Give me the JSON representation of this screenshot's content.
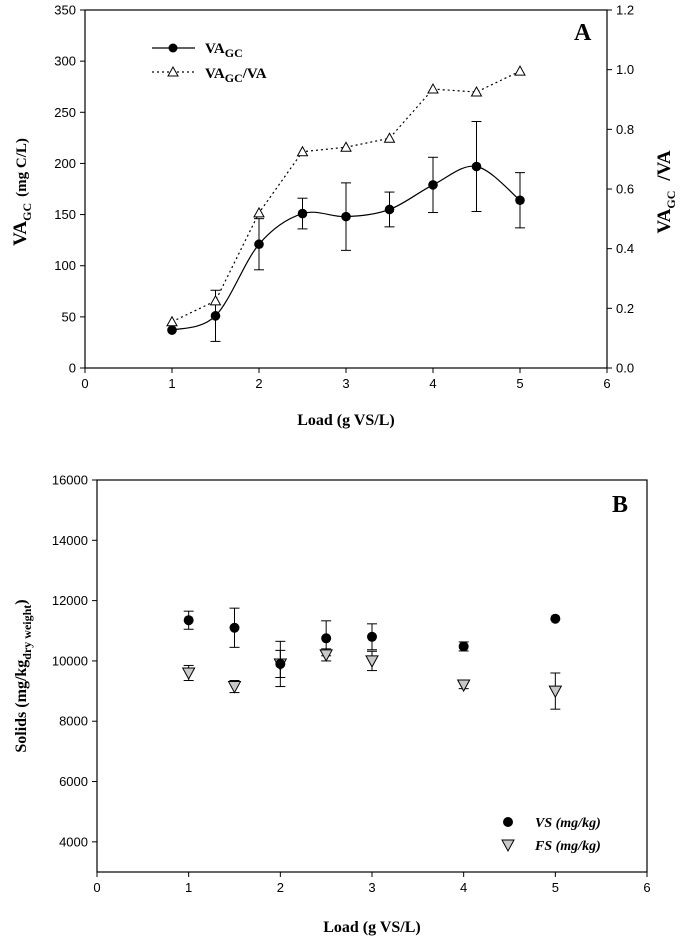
{
  "chart_data": [
    {
      "panel": "A",
      "type": "line",
      "xlabel": "Load (g VS/L)",
      "ylabel_main": "VA",
      "ylabel_sub": "GC",
      "ylabel_units": "(mg C/L)",
      "y2label_main": "VA",
      "y2label_sub": "GC",
      "y2label_rest": "/VA",
      "xlim": [
        0,
        6
      ],
      "ylim": [
        0,
        350
      ],
      "y2lim": [
        0,
        1.2
      ],
      "xticks": [
        0,
        1,
        2,
        3,
        4,
        5,
        6
      ],
      "yticks": [
        0,
        50,
        100,
        150,
        200,
        250,
        300,
        350
      ],
      "y2ticks": [
        "0.0",
        "0.2",
        "0.4",
        "0.6",
        "0.8",
        "1.0",
        "1.2"
      ],
      "legend": [
        {
          "main": "VA",
          "sub": "GC",
          "rest": ""
        },
        {
          "main": "VA",
          "sub": "GC",
          "rest": "/VA"
        }
      ],
      "series": [
        {
          "name": "VA_GC",
          "axis": "left",
          "x": [
            1,
            1.5,
            2,
            2.5,
            3,
            3.5,
            4,
            4.5,
            5
          ],
          "values": [
            37,
            51,
            121,
            151,
            148,
            155,
            179,
            197,
            164
          ],
          "err": [
            0,
            25,
            25,
            15,
            33,
            17,
            27,
            44,
            27
          ]
        },
        {
          "name": "VA_GC/VA",
          "axis": "right",
          "x": [
            1,
            1.5,
            2,
            2.5,
            3,
            3.5,
            4,
            4.5,
            5
          ],
          "values": [
            0.155,
            0.225,
            0.52,
            0.725,
            0.74,
            0.77,
            0.935,
            0.925,
            0.995
          ]
        }
      ]
    },
    {
      "panel": "B",
      "type": "scatter",
      "xlabel": "Load (g VS/L)",
      "ylabel_main": "Solids (mg/kg",
      "ylabel_sub": "dry weight",
      "ylabel_end": ")",
      "xlim": [
        0,
        6
      ],
      "ylim": [
        3000,
        16000
      ],
      "xticks": [
        0,
        1,
        2,
        3,
        4,
        5,
        6
      ],
      "yticks": [
        4000,
        6000,
        8000,
        10000,
        12000,
        14000,
        16000
      ],
      "legend": [
        "VS (mg/kg)",
        "FS (mg/kg)"
      ],
      "series": [
        {
          "name": "VS (mg/kg)",
          "x": [
            1,
            1.5,
            2,
            2.5,
            3,
            4,
            5
          ],
          "values": [
            11350,
            11100,
            9900,
            10750,
            10800,
            10480,
            11400
          ],
          "err": [
            300,
            650,
            750,
            580,
            430,
            150,
            0
          ]
        },
        {
          "name": "FS (mg/kg)",
          "x": [
            1,
            1.5,
            2,
            2.5,
            3,
            4,
            5
          ],
          "values": [
            9600,
            9150,
            9900,
            10200,
            10000,
            9200,
            9000
          ],
          "err": [
            250,
            200,
            450,
            200,
            320,
            120,
            600
          ]
        }
      ]
    }
  ]
}
